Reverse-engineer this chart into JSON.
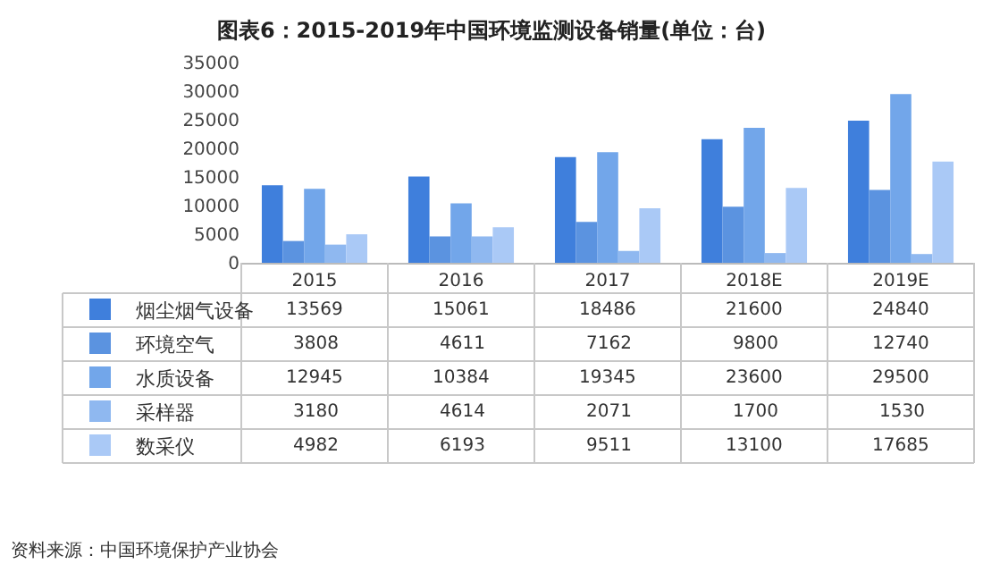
{
  "chart_data": {
    "type": "bar",
    "title": "图表6：2015-2019年中国环境监测设备销量(单位：台)",
    "categories": [
      "2015",
      "2016",
      "2017",
      "2018E",
      "2019E"
    ],
    "series": [
      {
        "name": "烟尘烟气设备",
        "color": "#3f7fdc",
        "values": [
          13569,
          15061,
          18486,
          21600,
          24840
        ]
      },
      {
        "name": "环境空气",
        "color": "#5b93e0",
        "values": [
          3808,
          4611,
          7162,
          9800,
          12740
        ]
      },
      {
        "name": "水质设备",
        "color": "#72a6ea",
        "values": [
          12945,
          10384,
          19345,
          23600,
          29500
        ]
      },
      {
        "name": "采样器",
        "color": "#8fb8f0",
        "values": [
          3180,
          4614,
          2071,
          1700,
          1530
        ]
      },
      {
        "name": "数采仪",
        "color": "#aac9f6",
        "values": [
          4982,
          6193,
          9511,
          13100,
          17685
        ]
      }
    ],
    "ylim": [
      0,
      35000
    ],
    "yticks": [
      0,
      5000,
      10000,
      15000,
      20000,
      25000,
      30000,
      35000
    ],
    "legend": "bottom",
    "data_labels": true,
    "annotations": [
      "资料来源：中国环境保护产业协会"
    ]
  }
}
